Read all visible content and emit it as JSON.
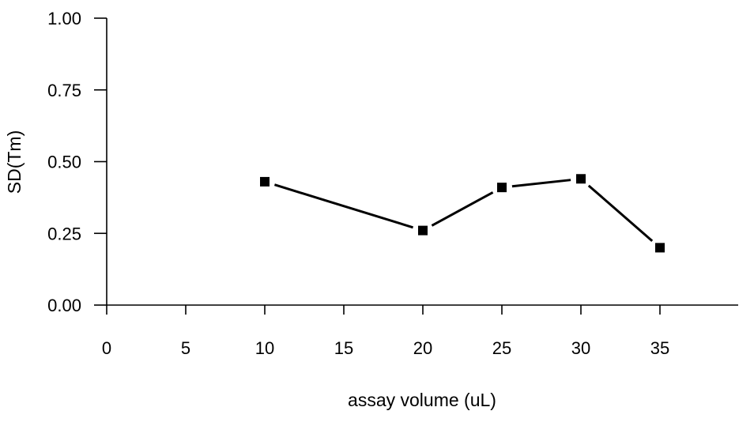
{
  "chart_data": {
    "type": "line",
    "title": "",
    "xlabel": "assay volume (uL)",
    "ylabel": "SD(Tm)",
    "x_categories": [
      "0",
      "5",
      "10",
      "15",
      "20",
      "25",
      "30",
      "35"
    ],
    "y_ticks": [
      "0.00",
      "0.25",
      "0.50",
      "0.75",
      "1.00"
    ],
    "ylim": [
      0,
      1
    ],
    "grid": false,
    "legend": "none",
    "series": [
      {
        "color": "#000000",
        "marker": "square",
        "points": [
          {
            "x": "10",
            "y": 0.43
          },
          {
            "x": "20",
            "y": 0.26
          },
          {
            "x": "25",
            "y": 0.41
          },
          {
            "x": "30",
            "y": 0.44
          },
          {
            "x": "35",
            "y": 0.2
          }
        ]
      }
    ]
  }
}
